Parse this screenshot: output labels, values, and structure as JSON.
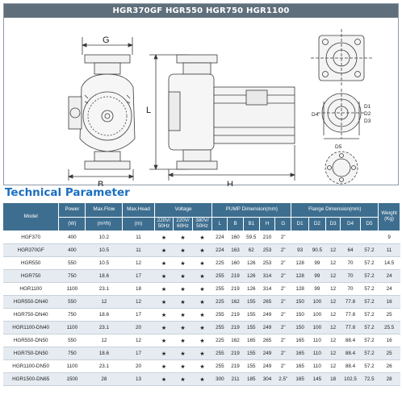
{
  "banner": "HGR370GF HGR550 HGR750 HGR1100",
  "drawing_labels": {
    "G": "G",
    "B": "B",
    "L": "L",
    "H": "H",
    "D1": "D1",
    "D2": "D2",
    "D3": "D3",
    "D4": "D4",
    "D5": "D5"
  },
  "section_title": "Technical Parameter",
  "table": {
    "headers": {
      "model": "Model",
      "power": "Power",
      "flow": "Max.Flow",
      "head": "Max.Head",
      "voltage": "Voltage",
      "pump_dim": "PUMP Dimension(mm)",
      "flange_dim": "Flange Dimension(mm)",
      "weight": "Weight (Kg)"
    },
    "subheaders": {
      "power_unit": "(W)",
      "flow_unit": "(m³/h)",
      "head_unit": "(m)",
      "v1": "220V/ 50Hz",
      "v2": "220V/ 60Hz",
      "v3": "380V/ 50Hz",
      "L": "L",
      "B": "B",
      "B1": "B1",
      "H": "H",
      "G": "G",
      "D1": "D1",
      "D2": "D2",
      "D3": "D3",
      "D4": "D4",
      "D5": "D5"
    },
    "rows": [
      [
        "HGF370",
        "400",
        "10.2",
        "11",
        "★",
        "★",
        "★",
        "224",
        "160",
        "59.5",
        "210",
        "2\"",
        "",
        "",
        "",
        "",
        "",
        "9"
      ],
      [
        "HGR370GF",
        "400",
        "10.5",
        "11",
        "★",
        "★",
        "★",
        "224",
        "163",
        "62",
        "253",
        "2\"",
        "93",
        "90.5",
        "12",
        "64",
        "57.2",
        "11"
      ],
      [
        "HGR550",
        "550",
        "10.5",
        "12",
        "★",
        "★",
        "★",
        "225",
        "160",
        "126",
        "253",
        "2\"",
        "128",
        "99",
        "12",
        "70",
        "57.2",
        "14.5"
      ],
      [
        "HGR750",
        "750",
        "18.6",
        "17",
        "★",
        "★",
        "★",
        "255",
        "219",
        "126",
        "314",
        "2\"",
        "128",
        "99",
        "12",
        "70",
        "57.2",
        "24"
      ],
      [
        "HGR1100",
        "1100",
        "23.1",
        "18",
        "★",
        "★",
        "★",
        "255",
        "219",
        "126",
        "314",
        "2\"",
        "128",
        "99",
        "12",
        "70",
        "57.2",
        "24"
      ],
      [
        "HGR550-DN40",
        "550",
        "12",
        "12",
        "★",
        "★",
        "★",
        "225",
        "162",
        "155",
        "265",
        "2\"",
        "150",
        "100",
        "12",
        "77.8",
        "57.2",
        "16"
      ],
      [
        "HGR750-DN40",
        "750",
        "18.6",
        "17",
        "★",
        "★",
        "★",
        "255",
        "219",
        "155",
        "249",
        "2\"",
        "150",
        "100",
        "12",
        "77.8",
        "57.2",
        "25"
      ],
      [
        "HGR1100-DN40",
        "1100",
        "23.1",
        "20",
        "★",
        "★",
        "★",
        "255",
        "219",
        "155",
        "249",
        "2\"",
        "150",
        "100",
        "12",
        "77.8",
        "57.2",
        "25.5"
      ],
      [
        "HGR550-DN50",
        "550",
        "12",
        "12",
        "★",
        "★",
        "★",
        "225",
        "162",
        "165",
        "265",
        "2\"",
        "165",
        "110",
        "12",
        "88.4",
        "57.2",
        "16"
      ],
      [
        "HGR750-DN50",
        "750",
        "18.6",
        "17",
        "★",
        "★",
        "★",
        "255",
        "219",
        "155",
        "249",
        "2\"",
        "165",
        "110",
        "12",
        "88.4",
        "57.2",
        "25"
      ],
      [
        "HGR1100-DN50",
        "1100",
        "23.1",
        "20",
        "★",
        "★",
        "★",
        "255",
        "219",
        "155",
        "249",
        "2\"",
        "165",
        "110",
        "12",
        "88.4",
        "57.2",
        "26"
      ],
      [
        "HGR1500-DN65",
        "1500",
        "28",
        "13",
        "★",
        "★",
        "★",
        "300",
        "211",
        "185",
        "304",
        "2.5\"",
        "165",
        "145",
        "18",
        "102.5",
        "72.5",
        "28"
      ]
    ]
  }
}
